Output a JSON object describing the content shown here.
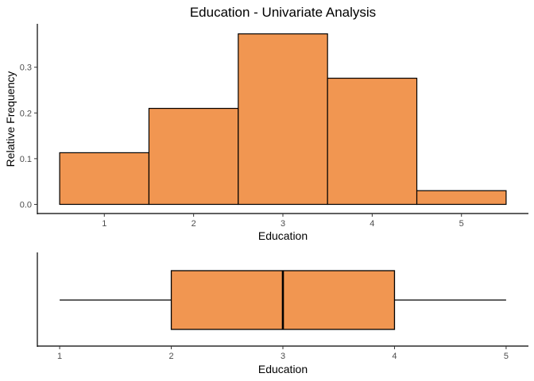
{
  "chart_data": [
    {
      "type": "bar",
      "title": "Education - Univariate Analysis",
      "xlabel": "Education",
      "ylabel": "Relative Frequency",
      "categories": [
        "1",
        "2",
        "3",
        "4",
        "5"
      ],
      "values": [
        0.113,
        0.21,
        0.373,
        0.276,
        0.03
      ],
      "x_ticks": [
        "1",
        "2",
        "3",
        "4",
        "5"
      ],
      "y_ticks": [
        "0.0",
        "0.1",
        "0.2",
        "0.3"
      ],
      "ylim": [
        -0.02,
        0.395
      ],
      "xlim": [
        0.25,
        5.75
      ],
      "fill_color": "#F19651",
      "stroke_color": "#000000",
      "grid": false,
      "legend": "none"
    },
    {
      "type": "boxplot",
      "xlabel": "Education",
      "x_ticks": [
        "1",
        "2",
        "3",
        "4",
        "5"
      ],
      "xlim": [
        0.8,
        5.2
      ],
      "min": 1,
      "q1": 2,
      "median": 3,
      "q3": 4,
      "max": 5,
      "fill_color": "#F19651",
      "stroke_color": "#000000",
      "grid": false,
      "legend": "none"
    }
  ]
}
